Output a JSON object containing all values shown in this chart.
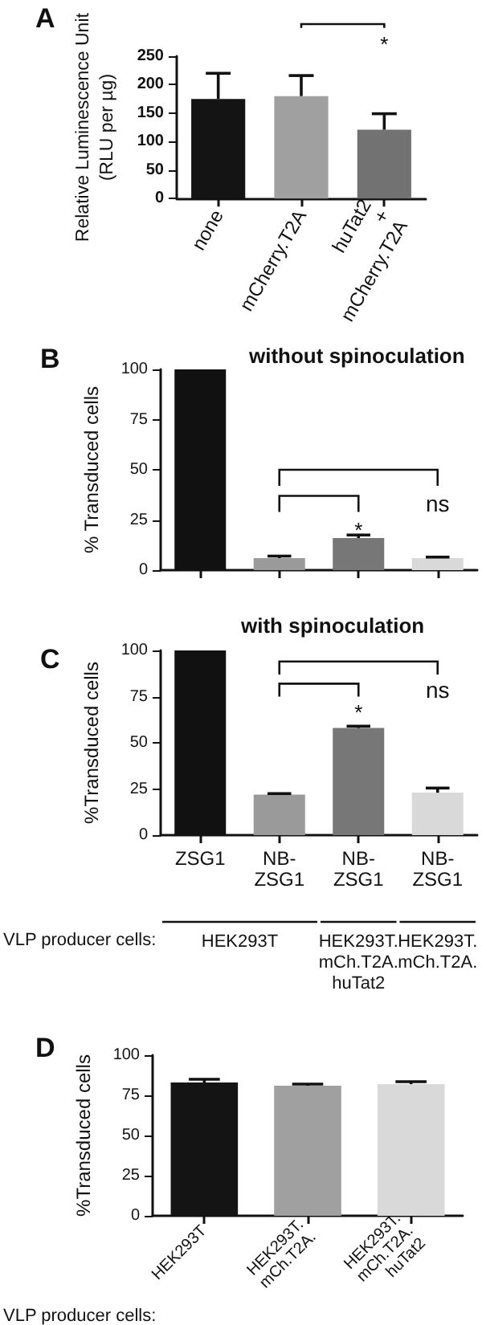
{
  "chart_data": [
    {
      "type": "bar",
      "title": "A",
      "ylabel": "Relative Luminescence Unit\n(RLU per µg)",
      "categories": [
        "none",
        "mCherry.T2A",
        "huTat2\n+\nmCherry.T2A"
      ],
      "values": [
        175,
        180,
        121
      ],
      "colors": [
        "#141414",
        "#a0a0a0",
        "#727272"
      ],
      "errors": [
        [
          175,
          220
        ],
        [
          180,
          216
        ],
        [
          121,
          149
        ]
      ],
      "ylim": [
        0,
        250
      ],
      "yticks": [
        0,
        50,
        100,
        150,
        200,
        250
      ],
      "annotations": [
        "*"
      ]
    },
    {
      "type": "bar",
      "title": "B",
      "subtitle": "without spinoculation",
      "ylabel": "% Transduced cells",
      "categories": [
        null,
        null,
        null,
        null
      ],
      "values": [
        100,
        6,
        16,
        6
      ],
      "colors": [
        "#111111",
        "#9a9a9a",
        "#777777",
        "#d9d9d9"
      ],
      "errors": [
        null,
        [
          6,
          7
        ],
        [
          16,
          17.5
        ],
        [
          6,
          6.5
        ]
      ],
      "ylim": [
        0,
        100
      ],
      "yticks": [
        0,
        25,
        50,
        75,
        100
      ],
      "tick_labels": "y",
      "annotations": [
        "*",
        "ns"
      ]
    },
    {
      "type": "bar",
      "title": "C",
      "subtitle": "with spinoculation",
      "ylabel": "%Transduced cells",
      "xlabel": "VLP producer cells:",
      "categories": [
        "ZSG1",
        "NB-\nZSG1",
        "NB-\nZSG1",
        "NB-\nZSG1"
      ],
      "values": [
        100,
        22,
        58,
        23
      ],
      "colors": [
        "#111111",
        "#9a9a9a",
        "#777777",
        "#d9d9d9"
      ],
      "errors": [
        null,
        [
          22,
          22.5
        ],
        [
          58,
          59
        ],
        [
          23,
          25.5
        ]
      ],
      "ylim": [
        0,
        100
      ],
      "yticks": [
        0,
        25,
        50,
        75,
        100
      ],
      "annotations": [
        "*",
        "ns",
        "HEK293T",
        "HEK293T.\nmCh.T2A.\nhuTat2",
        "HEK293T.\nmCh.T2A."
      ]
    },
    {
      "type": "bar",
      "title": "D",
      "ylabel": "%Transduced cells",
      "xlabel": "VLP producer cells:",
      "categories": [
        "HEK293T",
        "HEK293T.\nmCh.T2A.",
        "HEK293T.\nmCh.T2A.\nhuTat2"
      ],
      "values": [
        83,
        81,
        82
      ],
      "colors": [
        "#141414",
        "#a0a0a0",
        "#d9d9d9"
      ],
      "errors": [
        [
          83,
          85
        ],
        [
          81,
          82
        ],
        [
          82,
          83.5
        ]
      ],
      "ylim": [
        0,
        100
      ],
      "yticks": [
        0,
        25,
        50,
        75,
        100
      ]
    }
  ]
}
